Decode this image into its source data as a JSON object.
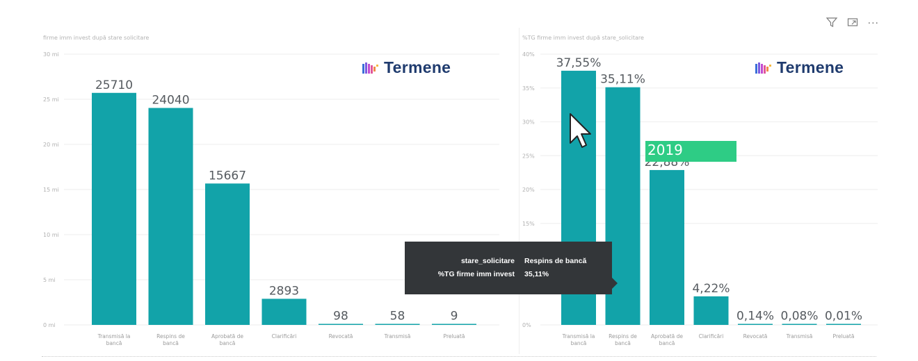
{
  "toolbar": {
    "icons": [
      "filter-icon",
      "focus-mode-icon",
      "more-options-icon"
    ],
    "more_label": "···"
  },
  "left_panel": {
    "title": "firme imm invest după stare solicitare",
    "logo_text": "Termene"
  },
  "right_panel": {
    "title": "%TG firme imm invest după stare_solicitare",
    "logo_text": "Termene"
  },
  "tooltip": {
    "rows": [
      {
        "key": "stare_solicitare",
        "value": "Respins de bancă"
      },
      {
        "key": "%TG firme imm invest",
        "value": "35,11%"
      }
    ]
  },
  "overlay": {
    "year_tag": "2019"
  },
  "colors": {
    "bar": "#12a3a9",
    "tooltip_bg": "#333639",
    "tag": "#2ecc85",
    "logo_text": "#1f3b6e"
  },
  "chart_data": [
    {
      "type": "bar",
      "title": "firme imm invest după stare solicitare",
      "categories": [
        "Transmisă la bancă",
        "Respins de bancă",
        "Aprobată de bancă",
        "Clarificări",
        "Revocată",
        "Transmisă",
        "Preluată"
      ],
      "values": [
        25710,
        24040,
        15667,
        2893,
        98,
        58,
        9
      ],
      "data_labels": [
        "25710",
        "24040",
        "15667",
        "2893",
        "98",
        "58",
        "9"
      ],
      "yticks": [
        0,
        5000,
        10000,
        15000,
        20000,
        25000,
        30000
      ],
      "ytick_labels": [
        "0 mi",
        "5 mi",
        "10 mi",
        "15 mi",
        "20 mi",
        "25 mi",
        "30 mi"
      ],
      "ylim": [
        0,
        30000
      ],
      "grid": true
    },
    {
      "type": "bar",
      "title": "%TG firme imm invest după stare_solicitare",
      "categories": [
        "Transmisă la bancă",
        "Respins de bancă",
        "Aprobată de bancă",
        "Clarificări",
        "Revocată",
        "Transmisă",
        "Preluată"
      ],
      "values": [
        37.55,
        35.11,
        22.88,
        4.22,
        0.14,
        0.08,
        0.01
      ],
      "data_labels": [
        "37,55%",
        "35,11%",
        "22,88%",
        "4,22%",
        "0,14%",
        "0,08%",
        "0,01%"
      ],
      "yticks": [
        0,
        15,
        20,
        25,
        30,
        35,
        40
      ],
      "ytick_labels": [
        "0%",
        "15%",
        "20%",
        "25%",
        "30%",
        "35%",
        "40%"
      ],
      "ylim": [
        0,
        40
      ],
      "grid": true
    }
  ]
}
